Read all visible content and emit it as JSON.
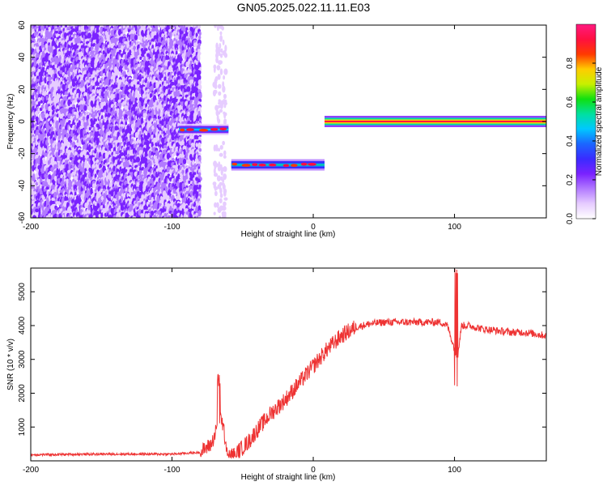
{
  "figure": {
    "title": "GN05.2025.022.11.11.E03"
  },
  "colors": {
    "snr_line": "#ee3333",
    "spectrogram_noise": "#8a2be2",
    "colormap": [
      "#ffffff",
      "#e6ccff",
      "#b27aff",
      "#7a22ff",
      "#3a2bff",
      "#1b66ff",
      "#00c8ff",
      "#00e0a0",
      "#10e010",
      "#c8f000",
      "#ffcc00",
      "#ff3a00",
      "#ff1040",
      "#ff1a80"
    ]
  },
  "chart_data": [
    {
      "type": "heatmap",
      "title": "GN05.2025.022.11.11.E03",
      "xlabel": "Height of straight line (km)",
      "ylabel": "Frequency (Hz)",
      "xlim": [
        -200,
        165
      ],
      "ylim": [
        -60,
        60
      ],
      "xticks": [
        -200,
        -100,
        0,
        100
      ],
      "yticks": [
        -60,
        -40,
        -20,
        0,
        20,
        40,
        60
      ],
      "colorbar": {
        "label": "Normalized spectral amplitude",
        "range": [
          0,
          1
        ],
        "ticks": [
          "0.0",
          "0.2",
          "0.4",
          "0.6",
          "0.8"
        ]
      },
      "features": [
        {
          "kind": "noise",
          "x_range": [
            -200,
            -80
          ],
          "y_range": [
            -60,
            60
          ],
          "amplitude": 0.15
        },
        {
          "kind": "sparse-noise",
          "x_range": [
            -70,
            -62
          ],
          "y_range": [
            -60,
            60
          ],
          "amplitude": 0.05
        },
        {
          "kind": "line",
          "x_range": [
            -95,
            -60
          ],
          "y_center": -5,
          "amplitude": 0.45
        },
        {
          "kind": "line",
          "x_range": [
            -58,
            8
          ],
          "y_center": -27,
          "amplitude": 0.5
        },
        {
          "kind": "line",
          "x_range": [
            8,
            165
          ],
          "y_center": 0,
          "amplitude": 0.95
        }
      ]
    },
    {
      "type": "line",
      "xlabel": "Height of straight line (km)",
      "ylabel": "SNR (10 * v/v)",
      "xlim": [
        -200,
        165
      ],
      "ylim": [
        0,
        5700
      ],
      "xticks": [
        -200,
        -100,
        0,
        100
      ],
      "yticks": [
        1000,
        2000,
        3000,
        4000,
        5000
      ],
      "series": [
        {
          "x": [
            -200,
            -150,
            -100,
            -80,
            -72,
            -68,
            -65,
            -63,
            -60,
            -55,
            -50,
            -45,
            -40,
            -30,
            -20,
            -10,
            0,
            10,
            20,
            30,
            40,
            50,
            60,
            70,
            80,
            90,
            95,
            100,
            102,
            105,
            110,
            120,
            130,
            140,
            150,
            165
          ],
          "y": [
            180,
            200,
            200,
            250,
            500,
            1000,
            1300,
            800,
            100,
            200,
            400,
            600,
            900,
            1400,
            1800,
            2300,
            2800,
            3300,
            3700,
            3950,
            4050,
            4100,
            4100,
            4100,
            4100,
            4100,
            4000,
            3300,
            3000,
            4000,
            4000,
            3900,
            3850,
            3800,
            3800,
            3700
          ]
        }
      ],
      "annotations": [
        {
          "x": -67,
          "y_max": 2600
        },
        {
          "x": 101,
          "y_max": 5700,
          "y_min": 2100
        }
      ]
    }
  ]
}
